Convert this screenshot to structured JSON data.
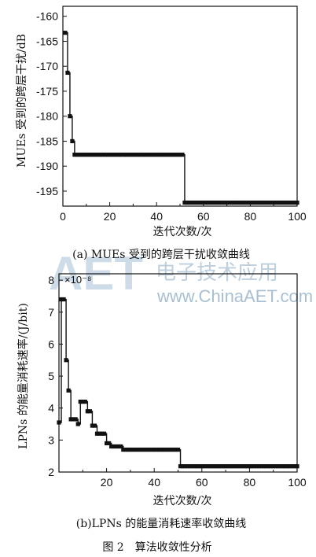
{
  "chart_data": [
    {
      "type": "line",
      "caption": "(a) MUEs 受到的跨层干扰收敛曲线",
      "xlabel": "迭代次数/次",
      "ylabel": "MUEs 受到的跨层干扰/dB",
      "xlim": [
        0,
        100
      ],
      "ylim": [
        -198,
        -158
      ],
      "xticks": [
        0,
        20,
        40,
        60,
        80,
        100
      ],
      "yticks": [
        -160,
        -165,
        -170,
        -175,
        -180,
        -185,
        -190,
        -195
      ],
      "marker": "square",
      "series": [
        {
          "x": [
            1,
            2,
            3,
            4,
            5,
            6,
            7,
            8,
            9,
            10,
            11,
            12,
            13,
            14,
            15,
            16,
            17,
            18,
            19,
            20,
            21,
            22,
            23,
            24,
            25,
            26,
            27,
            28,
            29,
            30,
            31,
            32,
            33,
            34,
            35,
            36,
            37,
            38,
            39,
            40,
            41,
            42,
            43,
            44,
            45,
            46,
            47,
            48,
            49,
            50,
            51,
            52,
            53,
            54,
            55,
            56,
            57,
            58,
            59,
            60,
            61,
            62,
            63,
            64,
            65,
            66,
            67,
            68,
            69,
            70,
            71,
            72,
            73,
            74,
            75,
            76,
            77,
            78,
            79,
            80,
            81,
            82,
            83,
            84,
            85,
            86,
            87,
            88,
            89,
            90,
            91,
            92,
            93,
            94,
            95,
            96,
            97,
            98,
            99,
            100
          ],
          "y": [
            -163.3,
            -171.3,
            -180.0,
            -185.0,
            -187.7,
            -187.7,
            -187.7,
            -187.7,
            -187.7,
            -187.7,
            -187.7,
            -187.7,
            -187.7,
            -187.7,
            -187.7,
            -187.7,
            -187.7,
            -187.7,
            -187.7,
            -187.7,
            -187.7,
            -187.7,
            -187.7,
            -187.7,
            -187.7,
            -187.7,
            -187.7,
            -187.7,
            -187.7,
            -187.7,
            -187.7,
            -187.7,
            -187.7,
            -187.7,
            -187.7,
            -187.7,
            -187.7,
            -187.7,
            -187.7,
            -187.7,
            -187.7,
            -187.7,
            -187.7,
            -187.7,
            -187.7,
            -187.7,
            -187.7,
            -187.7,
            -187.7,
            -187.7,
            -187.7,
            -197.3,
            -197.3,
            -197.3,
            -197.3,
            -197.3,
            -197.3,
            -197.3,
            -197.3,
            -197.3,
            -197.3,
            -197.3,
            -197.3,
            -197.3,
            -197.3,
            -197.3,
            -197.3,
            -197.3,
            -197.3,
            -197.3,
            -197.3,
            -197.3,
            -197.3,
            -197.3,
            -197.3,
            -197.3,
            -197.3,
            -197.3,
            -197.3,
            -197.3,
            -197.3,
            -197.3,
            -197.3,
            -197.3,
            -197.3,
            -197.3,
            -197.3,
            -197.3,
            -197.3,
            -197.3,
            -197.3,
            -197.3,
            -197.3,
            -197.3,
            -197.3,
            -197.3,
            -197.3,
            -197.3,
            -197.3,
            -197.3
          ]
        }
      ]
    },
    {
      "type": "line",
      "caption": "(b)LPNs 的能量消耗速率收敛曲线",
      "xlabel": "迭代次数/次",
      "ylabel": "LPNs 的能量消耗速率/(J/bit)",
      "xlim": [
        0,
        100
      ],
      "ylim": [
        2,
        8.2
      ],
      "xticks": [
        20,
        40,
        60,
        80,
        100
      ],
      "yticks": [
        2,
        3,
        4,
        5,
        6,
        7,
        8
      ],
      "y_multiplier": "×10⁻⁸",
      "marker": "square",
      "series": [
        {
          "x": [
            0,
            1,
            2,
            3,
            4,
            5,
            6,
            7,
            8,
            9,
            10,
            11,
            12,
            13,
            14,
            15,
            16,
            17,
            18,
            19,
            20,
            21,
            22,
            23,
            24,
            25,
            26,
            27,
            28,
            29,
            30,
            31,
            32,
            33,
            34,
            35,
            36,
            37,
            38,
            39,
            40,
            41,
            42,
            43,
            44,
            45,
            46,
            47,
            48,
            49,
            50,
            51,
            52,
            53,
            54,
            55,
            56,
            57,
            58,
            59,
            60,
            61,
            62,
            63,
            64,
            65,
            66,
            67,
            68,
            69,
            70,
            71,
            72,
            73,
            74,
            75,
            76,
            77,
            78,
            79,
            80,
            81,
            82,
            83,
            84,
            85,
            86,
            87,
            88,
            89,
            90,
            91,
            92,
            93,
            94,
            95,
            96,
            97,
            98,
            99,
            100
          ],
          "y": [
            3.55,
            7.4,
            7.4,
            5.5,
            4.55,
            3.65,
            3.65,
            3.65,
            3.5,
            4.2,
            4.2,
            4.2,
            3.9,
            3.9,
            3.45,
            3.45,
            3.2,
            3.2,
            3.2,
            3.2,
            2.9,
            2.9,
            2.8,
            2.8,
            2.8,
            2.8,
            2.8,
            2.7,
            2.7,
            2.7,
            2.7,
            2.7,
            2.7,
            2.7,
            2.7,
            2.7,
            2.7,
            2.7,
            2.7,
            2.7,
            2.7,
            2.7,
            2.7,
            2.7,
            2.7,
            2.7,
            2.7,
            2.7,
            2.7,
            2.7,
            2.7,
            2.18,
            2.18,
            2.18,
            2.18,
            2.18,
            2.18,
            2.18,
            2.18,
            2.18,
            2.18,
            2.18,
            2.18,
            2.18,
            2.18,
            2.18,
            2.18,
            2.18,
            2.18,
            2.18,
            2.18,
            2.18,
            2.18,
            2.18,
            2.18,
            2.18,
            2.18,
            2.18,
            2.18,
            2.18,
            2.18,
            2.18,
            2.18,
            2.18,
            2.18,
            2.18,
            2.18,
            2.18,
            2.18,
            2.18,
            2.18,
            2.18,
            2.18,
            2.18,
            2.18,
            2.18,
            2.18,
            2.18,
            2.18,
            2.18,
            2.18
          ]
        }
      ]
    }
  ],
  "figure_caption": "图 2　算法收敛性分析",
  "watermark": {
    "site": "www.ChinaAET.com",
    "logo": "AET",
    "tagline": "电子技术应用"
  }
}
